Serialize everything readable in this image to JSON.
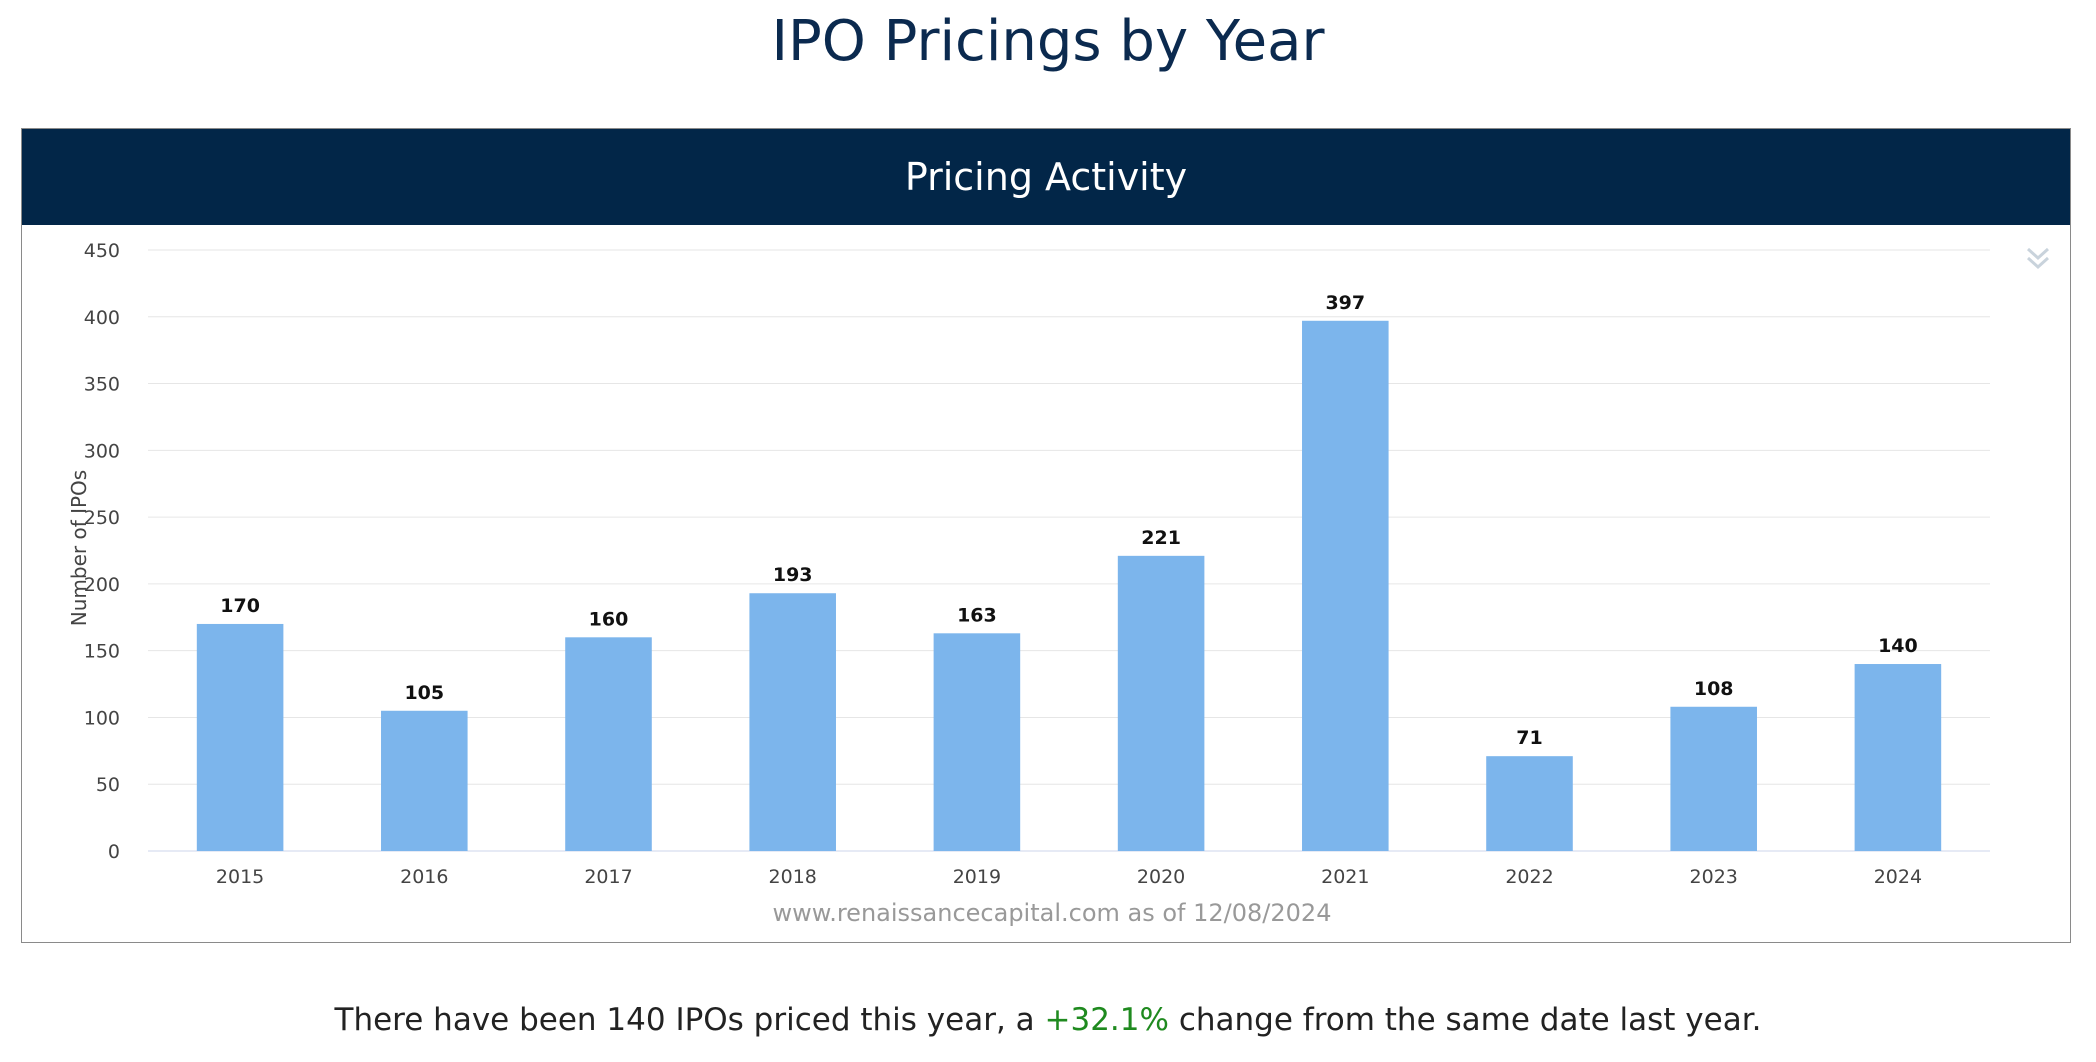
{
  "page": {
    "title": "IPO Pricings by Year"
  },
  "panel": {
    "header": "Pricing Activity",
    "menu_icon": "chevron-double-down-icon"
  },
  "chart_data": {
    "type": "bar",
    "categories": [
      "2015",
      "2016",
      "2017",
      "2018",
      "2019",
      "2020",
      "2021",
      "2022",
      "2023",
      "2024"
    ],
    "values": [
      170,
      105,
      160,
      193,
      163,
      221,
      397,
      71,
      108,
      140
    ],
    "ylabel": "Number of IPOs",
    "xlabel": "",
    "ylim": [
      0,
      450
    ],
    "yticks": [
      0,
      50,
      100,
      150,
      200,
      250,
      300,
      350,
      400,
      450
    ],
    "credit": "www.renaissancecapital.com as of 12/08/2024",
    "bar_color": "#7cb5ec",
    "grid": true,
    "data_labels": true
  },
  "summary": {
    "prefix": "There have been 140 IPOs priced this year, a ",
    "change": "+32.1%",
    "suffix": " change from the same date last year.",
    "change_color": "#1f8a1f"
  }
}
